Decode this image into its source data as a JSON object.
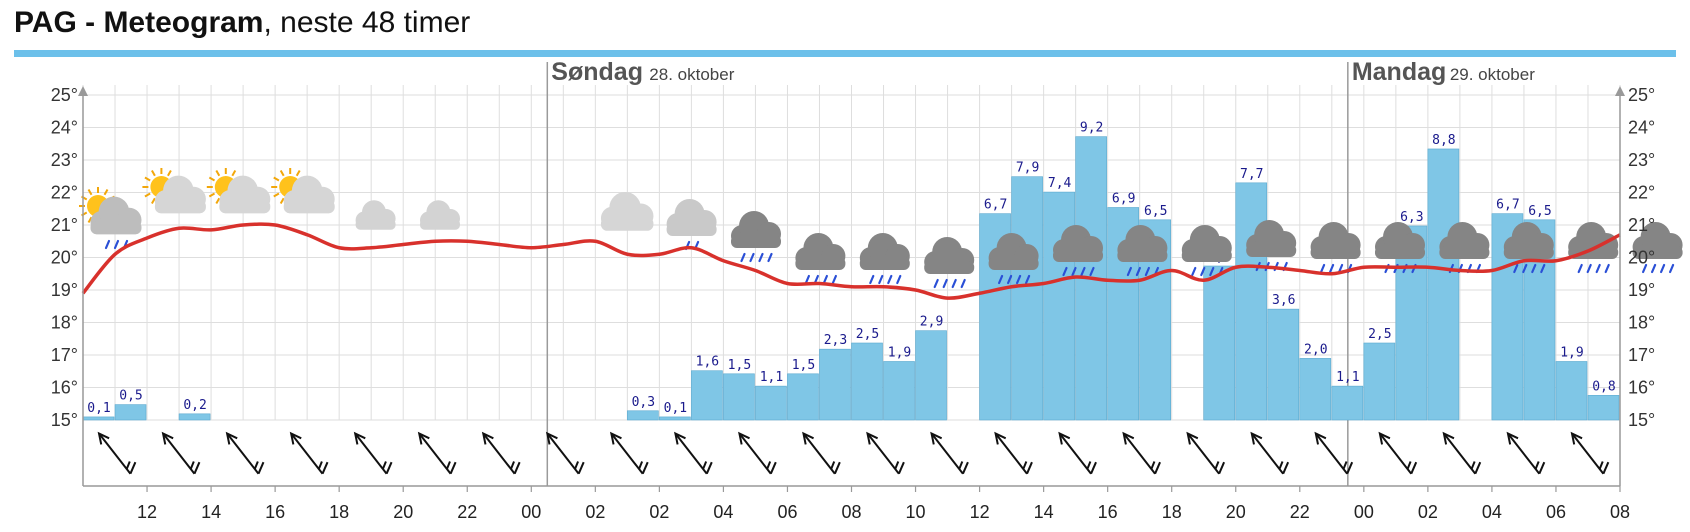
{
  "header": {
    "title_bold": "PAG - Meteogram",
    "title_rest": ", neste 48 timer"
  },
  "days": [
    {
      "name": "Søndag",
      "date": "28. oktober"
    },
    {
      "name": "Mandag",
      "date": "29. oktober"
    }
  ],
  "colors": {
    "temperature_line": "#d8312c",
    "precipitation_bar": "#7fc6e6",
    "title_bar": "#6cc0ea"
  },
  "chart_data": {
    "type": "bar",
    "ylim": [
      15,
      25
    ],
    "y_ticks": [
      "15°",
      "16°",
      "17°",
      "18°",
      "19°",
      "20°",
      "21°",
      "22°",
      "23°",
      "24°",
      "25°"
    ],
    "x_ticks": [
      "12",
      "14",
      "16",
      "18",
      "20",
      "22",
      "00",
      "02",
      "02",
      "04",
      "06",
      "08",
      "10",
      "12",
      "14",
      "16",
      "18",
      "20",
      "22",
      "00",
      "02",
      "04",
      "06",
      "08"
    ],
    "series": [
      {
        "values": [
          0.1,
          0.5,
          null,
          0.2,
          null,
          null,
          null,
          null,
          null,
          null,
          null,
          null,
          null,
          null,
          null,
          null,
          null,
          0.3,
          0.1,
          1.6,
          1.5,
          1.1,
          1.5,
          2.3,
          2.5,
          1.9,
          2.9,
          null,
          6.7,
          7.9,
          7.4,
          9.2,
          6.9,
          6.5,
          null,
          5.0,
          7.7,
          3.6,
          2.0,
          1.1,
          2.5,
          6.3,
          8.8,
          null,
          6.7,
          6.5,
          1.9,
          0.8
        ],
        "labels": [
          "0,1",
          "0,5",
          "",
          "0,2",
          "",
          "",
          "",
          "",
          "",
          "",
          "",
          "",
          "",
          "",
          "",
          "",
          "",
          "0,3",
          "0,1",
          "1,6",
          "1,5",
          "1,1",
          "1,5",
          "2,3",
          "2,5",
          "1,9",
          "2,9",
          "",
          "6,7",
          "7,9",
          "7,4",
          "9,2",
          "6,9",
          "6,5",
          "",
          "5,0",
          "7,7",
          "3,6",
          "2,0",
          "1,1",
          "2,5",
          "6,3",
          "8,8",
          "",
          "6,7",
          "6,5",
          "1,9",
          "0,8"
        ]
      },
      {
        "type": "line",
        "values": [
          18.9,
          20.1,
          20.6,
          20.9,
          20.85,
          21.0,
          21.0,
          20.7,
          20.3,
          20.3,
          20.4,
          20.5,
          20.5,
          20.4,
          20.3,
          20.4,
          20.5,
          20.1,
          20.1,
          20.3,
          19.9,
          19.6,
          19.2,
          19.2,
          19.1,
          19.1,
          19.0,
          18.75,
          18.9,
          19.1,
          19.2,
          19.4,
          19.3,
          19.3,
          19.6,
          19.3,
          19.7,
          19.7,
          19.6,
          19.5,
          19.7,
          19.7,
          19.7,
          19.6,
          19.6,
          19.9,
          19.9,
          20.2,
          20.7
        ]
      }
    ]
  },
  "weather_icons": [
    "partly-cloudy-rain-icon",
    "partly-cloudy-icon",
    "partly-cloudy-icon",
    "partly-cloudy-icon",
    "cloudy-night-icon",
    "cloudy-night-icon",
    "moon-icon",
    "moon-icon",
    "cloud-icon",
    "light-rain-icon",
    "rain-icon",
    "rain-icon",
    "rain-icon",
    "rain-icon",
    "rain-icon",
    "rain-icon",
    "rain-icon",
    "rain-icon",
    "rain-icon",
    "rain-icon",
    "rain-icon",
    "rain-icon",
    "rain-icon",
    "rain-icon",
    "rain-icon",
    "rain-icon",
    "partly-cloudy-rain-icon"
  ],
  "wind_arrows": [
    "wind-arrow-icon",
    "wind-arrow-icon",
    "wind-arrow-icon",
    "wind-arrow-icon",
    "wind-arrow-icon",
    "wind-arrow-icon",
    "wind-arrow-icon",
    "wind-arrow-icon",
    "wind-arrow-icon",
    "wind-arrow-icon",
    "wind-arrow-icon",
    "wind-arrow-icon",
    "wind-arrow-icon",
    "wind-arrow-icon",
    "wind-arrow-icon",
    "wind-arrow-icon",
    "wind-arrow-icon",
    "wind-arrow-icon",
    "wind-arrow-icon",
    "wind-arrow-icon",
    "wind-arrow-icon",
    "wind-arrow-icon",
    "wind-arrow-icon",
    "wind-arrow-icon"
  ]
}
